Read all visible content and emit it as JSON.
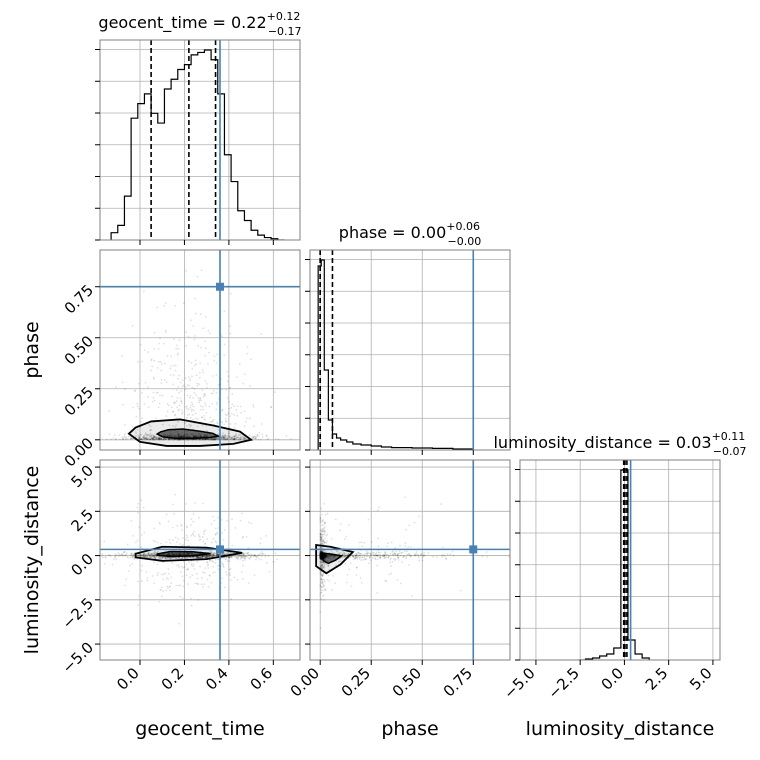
{
  "colors": {
    "truth": "#4682b4",
    "hist": "#000000",
    "grid": "#b0b0b0",
    "frame": "#808080",
    "points": "#000000"
  },
  "chart_data": {
    "type": "corner",
    "parameters": [
      "geocent_time",
      "phase",
      "luminosity_distance"
    ],
    "truths": {
      "geocent_time": 0.36,
      "phase": 0.75,
      "luminosity_distance": 0.35
    },
    "ranges": {
      "geocent_time": [
        -0.18,
        0.72
      ],
      "phase": [
        -0.05,
        0.93
      ],
      "luminosity_distance": [
        -5.9,
        5.4
      ]
    },
    "ticks": {
      "geocent_time": [
        0.0,
        0.2,
        0.4,
        0.6
      ],
      "phase": [
        0.0,
        0.25,
        0.5,
        0.75
      ],
      "luminosity_distance": [
        -5.0,
        -2.5,
        0.0,
        2.5,
        5.0
      ]
    },
    "tick_labels": {
      "geocent_time": [
        "0.0",
        "0.2",
        "0.4",
        "0.6"
      ],
      "phase": [
        "0.00",
        "0.25",
        "0.50",
        "0.75"
      ],
      "luminosity_distance": [
        "−5.0",
        "−2.5",
        "0.0",
        "2.5",
        "5.0"
      ]
    },
    "titles": [
      {
        "param": "geocent_time",
        "text": "geocent_time = 0.22",
        "sup": "+0.12",
        "sub": "−0.17"
      },
      {
        "param": "phase",
        "text": "phase = 0.00",
        "sup": "+0.06",
        "sub": "−0.00"
      },
      {
        "param": "luminosity_distance",
        "text": "luminosity_distance = 0.03",
        "sup": "+0.11",
        "sub": "−0.07"
      }
    ],
    "quantiles": {
      "geocent_time": [
        0.05,
        0.22,
        0.34
      ],
      "phase": [
        0.0,
        0.0,
        0.06
      ],
      "luminosity_distance": [
        -0.04,
        0.03,
        0.14
      ]
    },
    "histograms": {
      "geocent_time": {
        "edges": [
          -0.13,
          -0.1,
          -0.07,
          -0.04,
          -0.01,
          0.02,
          0.05,
          0.08,
          0.11,
          0.14,
          0.17,
          0.2,
          0.23,
          0.26,
          0.29,
          0.32,
          0.35,
          0.38,
          0.41,
          0.44,
          0.47,
          0.5,
          0.53,
          0.56,
          0.59,
          0.62,
          0.65
        ],
        "counts": [
          0.03,
          0.06,
          0.18,
          0.5,
          0.56,
          0.6,
          0.52,
          0.48,
          0.62,
          0.66,
          0.7,
          0.72,
          0.76,
          0.77,
          0.78,
          0.74,
          0.6,
          0.35,
          0.24,
          0.12,
          0.08,
          0.04,
          0.02,
          0.01,
          0.005,
          0.0
        ]
      },
      "phase": {
        "edges": [
          -0.01,
          0.005,
          0.02,
          0.04,
          0.06,
          0.08,
          0.1,
          0.13,
          0.16,
          0.2,
          0.25,
          0.3,
          0.35,
          0.45,
          0.55,
          0.65,
          0.75
        ],
        "counts": [
          0.92,
          0.95,
          0.4,
          0.15,
          0.08,
          0.06,
          0.05,
          0.04,
          0.03,
          0.025,
          0.02,
          0.015,
          0.012,
          0.01,
          0.008,
          0.005
        ]
      },
      "luminosity_distance": {
        "edges": [
          -2.6,
          -2.2,
          -1.8,
          -1.4,
          -1.0,
          -0.6,
          -0.2,
          0.2,
          0.6,
          1.0,
          1.4
        ],
        "counts": [
          0.0,
          0.005,
          0.01,
          0.02,
          0.03,
          0.06,
          0.95,
          0.1,
          0.03,
          0.01
        ]
      }
    },
    "contours": {
      "phase_vs_geocent_time": [
        [
          0.0,
          -0.01
        ],
        [
          0.12,
          -0.03
        ],
        [
          0.27,
          -0.03
        ],
        [
          0.42,
          -0.02
        ],
        [
          0.5,
          0.0
        ],
        [
          0.45,
          0.04
        ],
        [
          0.33,
          0.07
        ],
        [
          0.18,
          0.1
        ],
        [
          0.05,
          0.09
        ],
        [
          -0.02,
          0.06
        ],
        [
          -0.05,
          0.03
        ]
      ],
      "luminosity_distance_vs_geocent_time": [
        [
          -0.02,
          0.1
        ],
        [
          0.1,
          0.5
        ],
        [
          0.3,
          0.45
        ],
        [
          0.46,
          0.15
        ],
        [
          0.3,
          -0.2
        ],
        [
          0.1,
          -0.3
        ],
        [
          -0.02,
          -0.1
        ]
      ],
      "luminosity_distance_vs_phase": [
        [
          -0.02,
          0.6
        ],
        [
          0.05,
          0.5
        ],
        [
          0.16,
          0.2
        ],
        [
          0.1,
          -0.5
        ],
        [
          0.03,
          -1.0
        ],
        [
          -0.02,
          -0.6
        ]
      ]
    }
  }
}
